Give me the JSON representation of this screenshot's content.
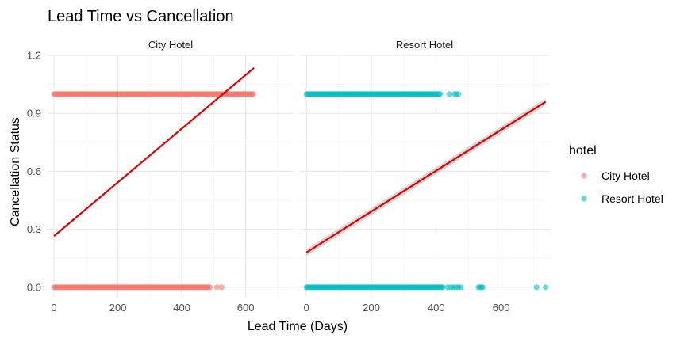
{
  "chart_data": {
    "type": "scatter",
    "title": "Lead Time vs Cancellation",
    "xlabel": "Lead Time (Days)",
    "ylabel": "Cancellation Status",
    "xlim": [
      -20,
      750
    ],
    "ylim": [
      -0.05,
      1.2
    ],
    "x_ticks": [
      0,
      200,
      400,
      600
    ],
    "x_tick_labels": [
      "0",
      "200",
      "400",
      "600"
    ],
    "y_ticks": [
      0,
      0.3,
      0.6,
      0.9,
      1.2
    ],
    "y_tick_labels": [
      "0.0",
      "0.3",
      "0.6",
      "0.9",
      "1.2"
    ],
    "grid": true,
    "legend": {
      "title": "hotel",
      "position": "right",
      "entries": [
        {
          "label": "City Hotel",
          "color": "#F8766D"
        },
        {
          "label": "Resort Hotel",
          "color": "#00BFC4"
        }
      ]
    },
    "fit_color": "#E00000",
    "panels": [
      {
        "strip_label": "City Hotel",
        "color": "#F8766D",
        "points": {
          "y1_runs": [
            [
              0,
              626
            ]
          ],
          "y1_isolated": [],
          "y0_runs": [
            [
              0,
              490
            ]
          ],
          "y0_isolated": [
            510,
            525
          ]
        },
        "fit": {
          "x": [
            0,
            626
          ],
          "y": [
            0.265,
            1.135
          ],
          "se": 0.004
        }
      },
      {
        "strip_label": "Resort Hotel",
        "color": "#00BFC4",
        "points": {
          "y1_runs": [
            [
              0,
              415
            ]
          ],
          "y1_isolated": [
            440,
            455,
            462,
            468
          ],
          "y0_runs": [
            [
              0,
              420
            ]
          ],
          "y0_isolated": [
            435,
            445,
            452,
            460,
            468,
            475,
            530,
            535,
            540,
            543,
            709,
            737
          ]
        },
        "fit": {
          "x": [
            0,
            737
          ],
          "y": [
            0.18,
            0.96
          ],
          "se": 0.018
        }
      }
    ]
  }
}
